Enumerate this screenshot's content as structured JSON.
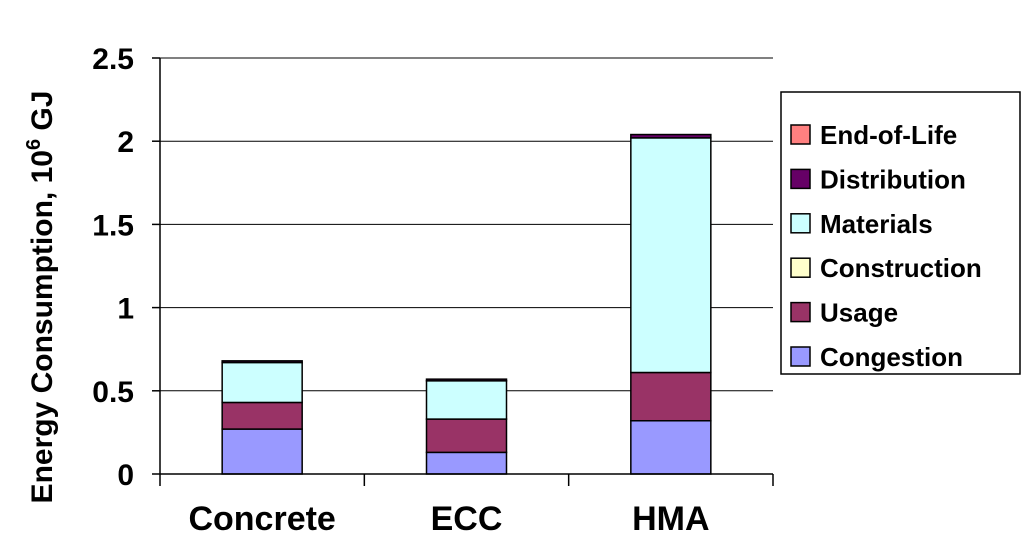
{
  "chart_data": {
    "type": "bar",
    "stacked": true,
    "categories": [
      "Concrete",
      "ECC",
      "HMA"
    ],
    "series": [
      {
        "name": "Congestion",
        "color": "#9999ff",
        "values": [
          0.27,
          0.13,
          0.32
        ]
      },
      {
        "name": "Usage",
        "color": "#993366",
        "values": [
          0.16,
          0.2,
          0.29
        ]
      },
      {
        "name": "Construction",
        "color": "#ffffcc",
        "values": [
          0.0,
          0.0,
          0.0
        ]
      },
      {
        "name": "Materials",
        "color": "#ccffff",
        "values": [
          0.24,
          0.23,
          1.41
        ]
      },
      {
        "name": "Distribution",
        "color": "#660066",
        "values": [
          0.01,
          0.01,
          0.02
        ]
      },
      {
        "name": "End-of-Life",
        "color": "#ff8080",
        "values": [
          0.0,
          0.0,
          0.0
        ]
      }
    ],
    "legend_order": [
      "End-of-Life",
      "Distribution",
      "Materials",
      "Construction",
      "Usage",
      "Congestion"
    ],
    "ylabel": {
      "prefix": "Energy Consumption, 10",
      "sup": "6",
      "suffix": " GJ"
    },
    "ylim": [
      0,
      2.5
    ],
    "yticks": [
      {
        "value": 0,
        "label": "0"
      },
      {
        "value": 0.5,
        "label": "0.5"
      },
      {
        "value": 1,
        "label": "1"
      },
      {
        "value": 1.5,
        "label": "1.5"
      },
      {
        "value": 2,
        "label": "2"
      },
      {
        "value": 2.5,
        "label": "2.5"
      }
    ],
    "grid": true,
    "legend_position": "right"
  }
}
